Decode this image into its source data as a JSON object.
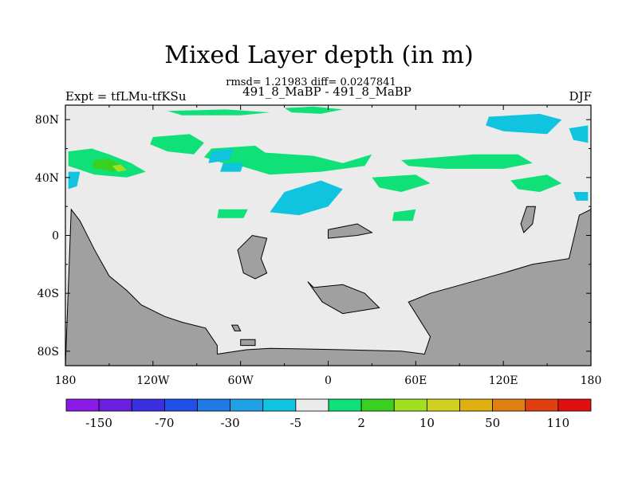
{
  "chart_data": {
    "type": "heatmap",
    "title": "Mixed Layer depth (in m)",
    "subtitle": "rmsd= 1.21983 diff= 0.0247841",
    "left_label": "Expt = tfLMu-tfKSu",
    "center_label": "491_8_MaBP - 491_8_MaBP",
    "right_label": "DJF",
    "x_ticks": [
      "180",
      "120W",
      "60W",
      "0",
      "60E",
      "120E",
      "180"
    ],
    "x_tick_values": [
      -180,
      -120,
      -60,
      0,
      60,
      120,
      180
    ],
    "y_ticks": [
      "80N",
      "40N",
      "0",
      "40S",
      "80S"
    ],
    "y_tick_values": [
      80,
      40,
      0,
      -40,
      -80
    ],
    "xlim": [
      -180,
      180
    ],
    "ylim": [
      -90,
      90
    ],
    "land_color": "#a0a0a0",
    "ocean_color": "#ebebeb",
    "colorbar": {
      "colors": [
        "#8a1be6",
        "#6a1fe0",
        "#3c2fe0",
        "#1f4fe6",
        "#1f7ae6",
        "#1fa0e6",
        "#10c4e0",
        "#ebebeb",
        "#10e078",
        "#3ad020",
        "#a0e020",
        "#d0d020",
        "#e0b010",
        "#e08010",
        "#e04010",
        "#e01010"
      ],
      "labels": [
        "-150",
        "-70",
        "-30",
        "-5",
        "2",
        "10",
        "50",
        "110"
      ]
    },
    "regions": [
      {
        "value": "2 to 5",
        "color": "#10e078",
        "lon": [
          -178,
          -162,
          -150,
          -135,
          -125,
          -138,
          -160,
          -178
        ],
        "lat": [
          58,
          60,
          56,
          50,
          44,
          40,
          42,
          48
        ]
      },
      {
        "value": "5 to 10",
        "color": "#3ad020",
        "lon": [
          -160,
          -150,
          -140,
          -148,
          -162
        ],
        "lat": [
          52,
          53,
          48,
          44,
          47
        ]
      },
      {
        "value": "10 to 20",
        "color": "#a0e020",
        "lon": [
          -148,
          -142,
          -138,
          -144
        ],
        "lat": [
          48,
          49,
          45,
          44
        ]
      },
      {
        "value": "2 to 5",
        "color": "#10e078",
        "lon": [
          -120,
          -95,
          -85,
          -92,
          -110,
          -122
        ],
        "lat": [
          68,
          70,
          64,
          56,
          58,
          63
        ]
      },
      {
        "value": "2 to 5",
        "color": "#10e078",
        "lon": [
          -80,
          -50,
          -40,
          -52,
          -72,
          -85
        ],
        "lat": [
          60,
          62,
          55,
          48,
          50,
          54
        ]
      },
      {
        "value": "2 to 5",
        "color": "#10e078",
        "lon": [
          -55,
          -10,
          10,
          30,
          25,
          -5,
          -40,
          -60
        ],
        "lat": [
          58,
          55,
          50,
          56,
          48,
          44,
          42,
          48
        ]
      },
      {
        "value": "2 to 5",
        "color": "#10e078",
        "lon": [
          -30,
          -10,
          10,
          -5,
          -25
        ],
        "lat": [
          88,
          89,
          87,
          84,
          85
        ]
      },
      {
        "value": "2 to 5",
        "color": "#10e078",
        "lon": [
          -110,
          -70,
          -40,
          -60,
          -100
        ],
        "lat": [
          86,
          87,
          85,
          83,
          83
        ]
      },
      {
        "value": "2 to 5",
        "color": "#10e078",
        "lon": [
          50,
          100,
          130,
          140,
          120,
          80,
          55
        ],
        "lat": [
          52,
          56,
          56,
          50,
          46,
          46,
          48
        ]
      },
      {
        "value": "2 to 5",
        "color": "#10e078",
        "lon": [
          30,
          60,
          70,
          50,
          35
        ],
        "lat": [
          40,
          42,
          36,
          30,
          33
        ]
      },
      {
        "value": "2 to 5",
        "color": "#10e078",
        "lon": [
          125,
          150,
          160,
          145,
          130
        ],
        "lat": [
          38,
          42,
          36,
          30,
          32
        ]
      },
      {
        "value": "2 to 5",
        "color": "#10e078",
        "lon": [
          45,
          60,
          58,
          44
        ],
        "lat": [
          16,
          18,
          10,
          10
        ]
      },
      {
        "value": "2 to 5",
        "color": "#10e078",
        "lon": [
          -75,
          -55,
          -58,
          -76
        ],
        "lat": [
          18,
          18,
          12,
          12
        ]
      },
      {
        "value": "-5 to -2",
        "color": "#10c4e0",
        "lon": [
          110,
          145,
          160,
          150,
          120,
          108
        ],
        "lat": [
          82,
          84,
          80,
          70,
          72,
          76
        ]
      },
      {
        "value": "-5 to -2",
        "color": "#10c4e0",
        "lon": [
          165,
          178,
          178,
          168
        ],
        "lat": [
          74,
          76,
          64,
          66
        ]
      },
      {
        "value": "-5 to -2",
        "color": "#10c4e0",
        "lon": [
          -30,
          -5,
          10,
          0,
          -20,
          -40
        ],
        "lat": [
          30,
          38,
          32,
          20,
          14,
          16
        ]
      },
      {
        "value": "-5 to -2",
        "color": "#10c4e0",
        "lon": [
          -178,
          -170,
          -172,
          -178
        ],
        "lat": [
          44,
          44,
          34,
          32
        ]
      },
      {
        "value": "-5 to -2",
        "color": "#10c4e0",
        "lon": [
          -80,
          -65,
          -68,
          -82
        ],
        "lat": [
          58,
          60,
          52,
          50
        ]
      },
      {
        "value": "-5 to -2",
        "color": "#10c4e0",
        "lon": [
          -72,
          -58,
          -60,
          -74
        ],
        "lat": [
          50,
          50,
          44,
          44
        ]
      },
      {
        "value": "-5 to -2",
        "color": "#10c4e0",
        "lon": [
          168,
          178,
          178,
          170
        ],
        "lat": [
          30,
          30,
          24,
          24
        ]
      },
      {
        "value": "land",
        "color": "#a0a0a0",
        "lon": [
          -180,
          -176,
          -170,
          -160,
          -150,
          -138,
          -128,
          -112,
          -100,
          -84,
          -76,
          -76,
          -56,
          -40,
          10,
          50,
          66,
          70,
          55,
          70,
          120,
          140,
          165,
          172,
          180,
          180,
          -180
        ],
        "lat": [
          -90,
          18,
          10,
          -10,
          -28,
          -38,
          -48,
          -56,
          -60,
          -64,
          -76,
          -82,
          -79,
          -78,
          -79,
          -80,
          -82,
          -70,
          -46,
          -40,
          -26,
          -20,
          -16,
          14,
          18,
          -90,
          -90
        ]
      },
      {
        "value": "land",
        "color": "#a0a0a0",
        "lon": [
          -62,
          -52,
          -42,
          -46,
          -42,
          -50,
          -58
        ],
        "lat": [
          -10,
          0,
          -2,
          -16,
          -26,
          -30,
          -26
        ]
      },
      {
        "value": "land",
        "color": "#a0a0a0",
        "lon": [
          -14,
          -10,
          10,
          25,
          35,
          10,
          -4
        ],
        "lat": [
          -32,
          -36,
          -34,
          -40,
          -50,
          -54,
          -46
        ]
      },
      {
        "value": "land",
        "color": "#a0a0a0",
        "lon": [
          0,
          10,
          20,
          30,
          20,
          0
        ],
        "lat": [
          4,
          6,
          8,
          2,
          0,
          -2
        ]
      },
      {
        "value": "land",
        "color": "#a0a0a0",
        "lon": [
          136,
          142,
          140,
          134,
          132
        ],
        "lat": [
          20,
          20,
          8,
          2,
          8
        ]
      },
      {
        "value": "land",
        "color": "#a0a0a0",
        "lon": [
          -66,
          -62,
          -60,
          -64
        ],
        "lat": [
          -62,
          -62,
          -66,
          -66
        ]
      },
      {
        "value": "land",
        "color": "#a0a0a0",
        "lon": [
          -60,
          -50,
          -50,
          -60
        ],
        "lat": [
          -72,
          -72,
          -76,
          -76
        ]
      }
    ]
  }
}
